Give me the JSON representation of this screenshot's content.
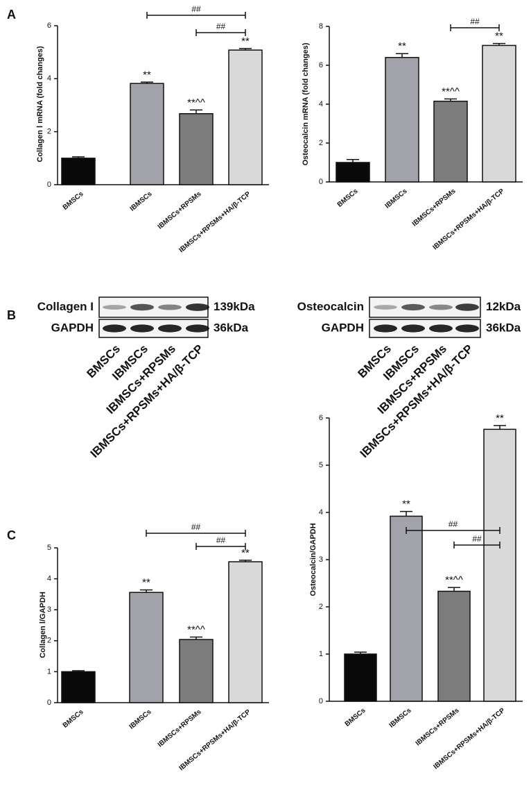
{
  "panel_labels": [
    "A",
    "B",
    "C"
  ],
  "chart_data": [
    {
      "type": "bar",
      "ylabel": "Collagen Ⅰ mRNA (fold changes)",
      "categories": [
        "BMSCs",
        "IBMSCs",
        "IBMSCs+RPSMs",
        "IBMSCs+RPSMs+HA/β-TCP"
      ],
      "values": [
        1.0,
        3.82,
        2.68,
        5.08
      ],
      "errors": [
        0.05,
        0.05,
        0.14,
        0.06
      ],
      "colors": [
        "#0a0a0a",
        "#a2a2aa",
        "#7c7c7c",
        "#d9d9d9"
      ],
      "annotations": [
        null,
        "**",
        "**^^",
        "**"
      ],
      "comparisons": [
        {
          "label": "##",
          "between": [
            "IBMSCs",
            "IBMSCs+RPSMs+HA/β-TCP"
          ]
        },
        {
          "label": "##",
          "between": [
            "IBMSCs+RPSMs",
            "IBMSCs+RPSMs+HA/β-TCP"
          ]
        }
      ],
      "ylim": [
        0,
        6
      ],
      "yticks": [
        0,
        2,
        4,
        6
      ]
    },
    {
      "type": "bar",
      "ylabel": "Osteocalcin mRNA (fold changes)",
      "categories": [
        "BMSCs",
        "IBMSCs",
        "IBMSCs+RPSMs",
        "IBMSCs+RPSMs+HA/β-TCP"
      ],
      "values": [
        1.0,
        6.4,
        4.15,
        7.02
      ],
      "errors": [
        0.15,
        0.2,
        0.12,
        0.1
      ],
      "colors": [
        "#0a0a0a",
        "#a2a2aa",
        "#7c7c7c",
        "#d9d9d9"
      ],
      "annotations": [
        null,
        "**",
        "**^^",
        "**"
      ],
      "comparisons": [
        {
          "label": "##",
          "between": [
            "IBMSCs+RPSMs",
            "IBMSCs+RPSMs+HA/β-TCP"
          ]
        }
      ],
      "ylim": [
        0,
        8
      ],
      "yticks": [
        0,
        2,
        4,
        6,
        8
      ]
    },
    {
      "type": "bar",
      "ylabel": "Collagen Ⅰ/GAPDH",
      "categories": [
        "BMSCs",
        "IBMSCs",
        "IBMSCs+RPSMs",
        "IBMSCs+RPSMs+HA/β-TCP"
      ],
      "values": [
        1.0,
        3.56,
        2.04,
        4.55
      ],
      "errors": [
        0.03,
        0.08,
        0.08,
        0.05
      ],
      "colors": [
        "#0a0a0a",
        "#a2a2aa",
        "#7c7c7c",
        "#d9d9d9"
      ],
      "annotations": [
        null,
        "**",
        "**^^",
        "**"
      ],
      "comparisons": [
        {
          "label": "##",
          "between": [
            "IBMSCs",
            "IBMSCs+RPSMs+HA/β-TCP"
          ]
        },
        {
          "label": "##",
          "between": [
            "IBMSCs+RPSMs",
            "IBMSCs+RPSMs+HA/β-TCP"
          ]
        }
      ],
      "ylim": [
        0,
        5
      ],
      "yticks": [
        0,
        1,
        2,
        3,
        4,
        5
      ]
    },
    {
      "type": "bar",
      "ylabel": "Osteocalcin/GAPDH",
      "categories": [
        "BMSCs",
        "IBMSCs",
        "IBMSCs+RPSMs",
        "IBMSCs+RPSMs+HA/β-TCP"
      ],
      "values": [
        1.0,
        3.92,
        2.33,
        5.76
      ],
      "errors": [
        0.04,
        0.1,
        0.08,
        0.08
      ],
      "colors": [
        "#0a0a0a",
        "#a2a2aa",
        "#7c7c7c",
        "#d9d9d9"
      ],
      "annotations": [
        null,
        "**",
        "**^^",
        "**"
      ],
      "comparisons": [
        {
          "label": "##",
          "between": [
            "IBMSCs",
            "IBMSCs+RPSMs+HA/β-TCP"
          ]
        },
        {
          "label": "##",
          "between": [
            "IBMSCs+RPSMs",
            "IBMSCs+RPSMs+HA/β-TCP"
          ]
        }
      ],
      "ylim": [
        0,
        6
      ],
      "yticks": [
        0,
        1,
        2,
        3,
        4,
        5,
        6
      ]
    }
  ],
  "blots": [
    {
      "rows": [
        {
          "name": "Collagen I",
          "size": "139kDa"
        },
        {
          "name": "GAPDH",
          "size": "36kDa"
        }
      ],
      "lanes": [
        "BMSCs",
        "IBMSCs",
        "IBMSCs+RPSMs",
        "IBMSCs+RPSMs+HA/β-TCP"
      ]
    },
    {
      "rows": [
        {
          "name": "Osteocalcin",
          "size": "12kDa"
        },
        {
          "name": "GAPDH",
          "size": "36kDa"
        }
      ],
      "lanes": [
        "BMSCs",
        "IBMSCs",
        "IBMSCs+RPSMs",
        "IBMSCs+RPSMs+HA/β-TCP"
      ]
    }
  ]
}
